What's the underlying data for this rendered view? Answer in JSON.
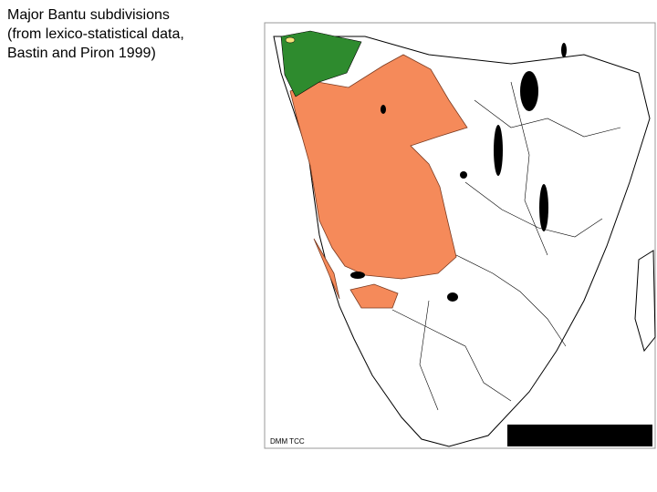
{
  "header": {
    "title_lines": [
      "Major Bantu subdivisions",
      "(from lexico-statistical data,",
      "Bastin and Piron 1999)"
    ]
  },
  "map": {
    "credit": "DMM TCC"
  }
}
